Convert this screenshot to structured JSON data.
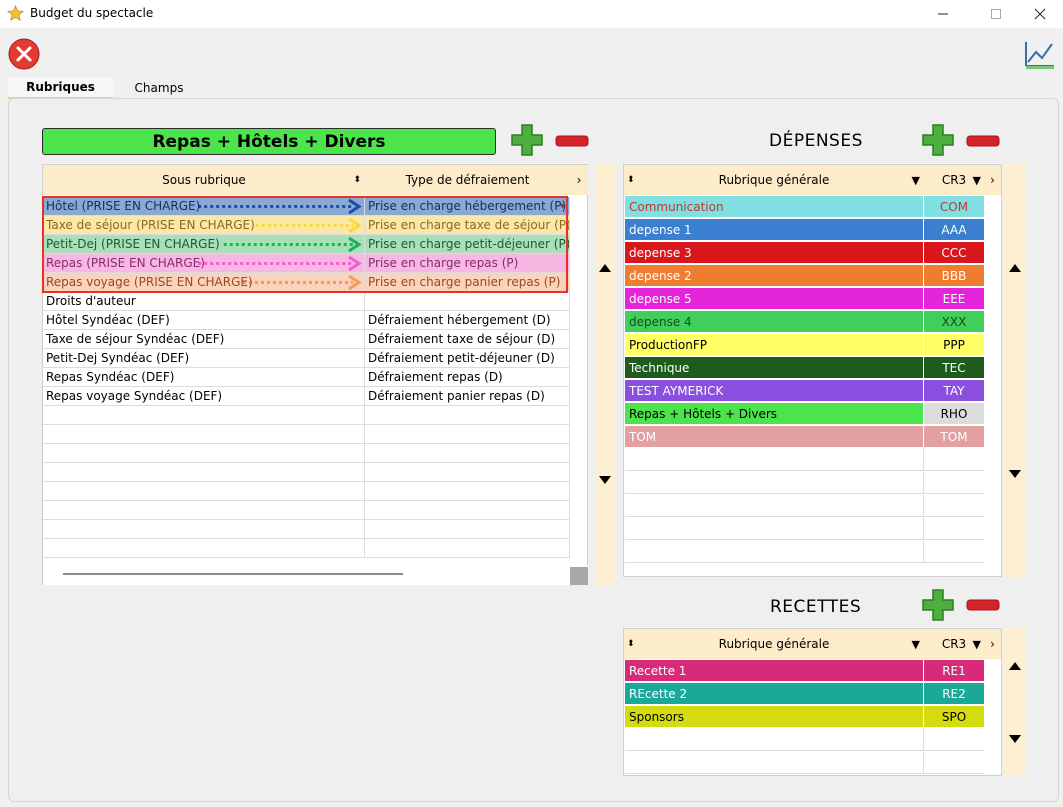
{
  "window": {
    "title": "Budget du spectacle"
  },
  "tabs": [
    {
      "label": "Rubriques",
      "active": true
    },
    {
      "label": "Champs",
      "active": false
    }
  ],
  "left": {
    "selected_rubrique": "Repas + Hôtels + Divers",
    "columns": [
      "Sous rubrique",
      "Type de défraiement"
    ],
    "rows": [
      {
        "sous": "Hôtel (PRISE EN CHARGE)",
        "type": "Prise en charge hébergement (P)",
        "bg": "#8aa8d4",
        "fg": "#1a2d6a",
        "arrow": "#1a4fa8"
      },
      {
        "sous": "Taxe de séjour (PRISE EN CHARGE)",
        "type": "Prise en charge taxe de séjour (P)",
        "bg": "#fbe7a8",
        "fg": "#8a6a20",
        "arrow": "#f5d94a"
      },
      {
        "sous": "Petit-Dej (PRISE EN CHARGE)",
        "type": "Prise en charge petit-déjeuner (P)",
        "bg": "#a8e0b8",
        "fg": "#1e5a2e",
        "arrow": "#17b35a"
      },
      {
        "sous": "Repas (PRISE EN CHARGE)",
        "type": "Prise en charge repas (P)",
        "bg": "#f6b7e3",
        "fg": "#8a2a70",
        "arrow": "#f05fd0"
      },
      {
        "sous": "Repas voyage (PRISE EN CHARGE)",
        "type": "Prise en charge panier repas (P)",
        "bg": "#fbd2bb",
        "fg": "#9a4a20",
        "arrow": "#f59a5a"
      },
      {
        "sous": "Droits d'auteur",
        "type": ""
      },
      {
        "sous": "Hôtel Syndéac (DEF)",
        "type": "Défraiement hébergement (D)"
      },
      {
        "sous": "Taxe de séjour Syndéac (DEF)",
        "type": "Défraiement taxe de séjour (D)"
      },
      {
        "sous": "Petit-Dej Syndéac (DEF)",
        "type": "Défraiement petit-déjeuner (D)"
      },
      {
        "sous": "Repas Syndéac (DEF)",
        "type": "Défraiement repas (D)"
      },
      {
        "sous": "Repas voyage Syndéac (DEF)",
        "type": "Défraiement panier repas (D)"
      }
    ]
  },
  "depenses": {
    "title": "DÉPENSES",
    "col_general": "Rubrique générale",
    "col_code": "CR3",
    "rows": [
      {
        "name": "Communication",
        "code": "COM",
        "bg": "#7fdfe3",
        "fg": "#c0392b"
      },
      {
        "name": "depense 1",
        "code": "AAA",
        "bg": "#3a7fd0",
        "fg": "#ffffff"
      },
      {
        "name": "depense 3",
        "code": "CCC",
        "bg": "#d9161c",
        "fg": "#ffffff"
      },
      {
        "name": "depense 2",
        "code": "BBB",
        "bg": "#ef7d2f",
        "fg": "#ffffff"
      },
      {
        "name": "depense 5",
        "code": "EEE",
        "bg": "#e424d8",
        "fg": "#ffffff"
      },
      {
        "name": "depense 4",
        "code": "XXX",
        "bg": "#3fcf5a",
        "fg": "#1a4a1a"
      },
      {
        "name": "ProductionFP",
        "code": "PPP",
        "bg": "#ffff66",
        "fg": "#000000"
      },
      {
        "name": "Technique",
        "code": "TEC",
        "bg": "#1e5c1e",
        "fg": "#ffffff"
      },
      {
        "name": "TEST AYMERICK",
        "code": "TAY",
        "bg": "#8b4fe0",
        "fg": "#ffffff"
      },
      {
        "name": "Repas + Hôtels + Divers",
        "code": "RHO",
        "bg": "#4be44b",
        "fg": "#000000",
        "code_bg": "#dcdcdc"
      },
      {
        "name": "TOM",
        "code": "TOM",
        "bg": "#e2a0a0",
        "fg": "#ffffff"
      }
    ]
  },
  "recettes": {
    "title": "RECETTES",
    "col_general": "Rubrique générale",
    "col_code": "CR3",
    "rows": [
      {
        "name": "Recette 1",
        "code": "RE1",
        "bg": "#d82a7a",
        "fg": "#ffffff"
      },
      {
        "name": "REcette 2",
        "code": "RE2",
        "bg": "#1aa898",
        "fg": "#ffffff"
      },
      {
        "name": "Sponsors",
        "code": "SPO",
        "bg": "#d4dc10",
        "fg": "#000000"
      }
    ]
  },
  "icons": {
    "app": "star-icon",
    "close_circle": "close-circle-icon",
    "toolbar_right": "chart-edit-icon",
    "add": "plus-icon",
    "remove": "minus-icon",
    "filter": "filter-icon",
    "sort": "sort-icon"
  }
}
